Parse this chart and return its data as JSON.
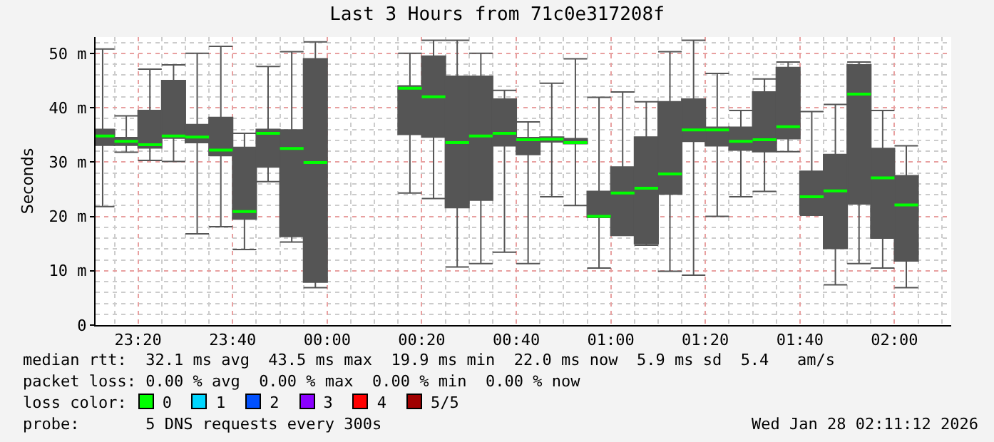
{
  "chart_data": {
    "type": "box",
    "title": "Last 3 Hours from 71c0e317208f",
    "ylabel": "Seconds",
    "x": [
      "2026-01-27T23:15",
      "2026-01-27T23:20",
      "2026-01-27T23:25",
      "2026-01-27T23:30",
      "2026-01-27T23:35",
      "2026-01-27T23:40",
      "2026-01-27T23:45",
      "2026-01-27T23:50",
      "2026-01-27T23:55",
      "2026-01-28T00:00",
      "2026-01-28T00:20",
      "2026-01-28T00:25",
      "2026-01-28T00:30",
      "2026-01-28T00:35",
      "2026-01-28T00:40",
      "2026-01-28T00:45",
      "2026-01-28T00:50",
      "2026-01-28T00:55",
      "2026-01-28T01:00",
      "2026-01-28T01:05",
      "2026-01-28T01:10",
      "2026-01-28T01:15",
      "2026-01-28T01:20",
      "2026-01-28T01:25",
      "2026-01-28T01:30",
      "2026-01-28T01:35",
      "2026-01-28T01:40",
      "2026-01-28T01:45",
      "2026-01-28T01:50",
      "2026-01-28T01:55",
      "2026-01-28T02:00",
      "2026-01-28T02:05"
    ],
    "series": [
      {
        "color": "#555555",
        "boxes": [
          {
            "low": 21.8,
            "q1": 33.1,
            "median": 34.8,
            "q3": 36.0,
            "high": 50.8
          },
          {
            "low": 31.8,
            "q1": 33.1,
            "median": 33.8,
            "q3": 34.5,
            "high": 38.5
          },
          {
            "low": 30.3,
            "q1": 32.6,
            "median": 33.2,
            "q3": 39.5,
            "high": 47.1
          },
          {
            "low": 30.1,
            "q1": 34.4,
            "median": 34.8,
            "q3": 45.0,
            "high": 47.9
          },
          {
            "low": 16.8,
            "q1": 33.6,
            "median": 34.6,
            "q3": 36.9,
            "high": 50.0
          },
          {
            "low": 18.1,
            "q1": 31.2,
            "median": 32.2,
            "q3": 38.2,
            "high": 51.3
          },
          {
            "low": 13.9,
            "q1": 19.5,
            "median": 20.9,
            "q3": 32.7,
            "high": 35.3
          },
          {
            "low": 26.4,
            "q1": 29.1,
            "median": 35.3,
            "q3": 36.0,
            "high": 47.6
          },
          {
            "low": 15.3,
            "q1": 16.3,
            "median": 32.5,
            "q3": 35.9,
            "high": 50.3
          },
          {
            "low": 6.9,
            "q1": 7.9,
            "median": 29.9,
            "q3": 49.0,
            "high": 52.1
          },
          {
            "low": 24.3,
            "q1": 35.1,
            "median": 43.6,
            "q3": 44.0,
            "high": 50.0
          },
          {
            "low": 23.3,
            "q1": 34.6,
            "median": 42.0,
            "q3": 49.5,
            "high": 52.4
          },
          {
            "low": 10.7,
            "q1": 21.6,
            "median": 33.6,
            "q3": 45.8,
            "high": 52.4
          },
          {
            "low": 11.3,
            "q1": 23.0,
            "median": 34.8,
            "q3": 45.8,
            "high": 50.0
          },
          {
            "low": 13.4,
            "q1": 33.0,
            "median": 35.3,
            "q3": 41.6,
            "high": 43.2
          },
          {
            "low": 11.3,
            "q1": 31.4,
            "median": 34.1,
            "q3": 34.5,
            "high": 37.4
          },
          {
            "low": 23.6,
            "q1": 33.7,
            "median": 34.2,
            "q3": 34.6,
            "high": 44.5
          },
          {
            "low": 22.0,
            "q1": 33.4,
            "median": 33.6,
            "q3": 34.3,
            "high": 49.0
          },
          {
            "low": 10.5,
            "q1": 19.8,
            "median": 20.0,
            "q3": 24.6,
            "high": 41.9
          },
          {
            "low": 16.5,
            "q1": 16.5,
            "median": 24.3,
            "q3": 29.1,
            "high": 42.9
          },
          {
            "low": 14.7,
            "q1": 15.0,
            "median": 25.2,
            "q3": 34.6,
            "high": 41.1
          },
          {
            "low": 9.9,
            "q1": 24.1,
            "median": 27.8,
            "q3": 41.1,
            "high": 50.3
          },
          {
            "low": 9.2,
            "q1": 33.8,
            "median": 35.9,
            "q3": 41.6,
            "high": 52.4
          },
          {
            "low": 20.0,
            "q1": 33.0,
            "median": 35.9,
            "q3": 36.4,
            "high": 46.3
          },
          {
            "low": 23.6,
            "q1": 32.2,
            "median": 33.8,
            "q3": 36.4,
            "high": 39.5
          },
          {
            "low": 24.6,
            "q1": 31.9,
            "median": 34.1,
            "q3": 42.9,
            "high": 45.3
          },
          {
            "low": 31.9,
            "q1": 34.3,
            "median": 36.5,
            "q3": 47.4,
            "high": 48.4
          },
          {
            "low": 20.2,
            "q1": 20.4,
            "median": 23.6,
            "q3": 28.3,
            "high": 39.3
          },
          {
            "low": 7.4,
            "q1": 14.1,
            "median": 24.7,
            "q3": 31.4,
            "high": 40.6
          },
          {
            "low": 11.3,
            "q1": 22.3,
            "median": 42.5,
            "q3": 47.9,
            "high": 48.4
          },
          {
            "low": 10.5,
            "q1": 16.0,
            "median": 27.1,
            "q3": 32.5,
            "high": 39.5
          },
          {
            "low": 6.9,
            "q1": 11.8,
            "median": 22.1,
            "q3": 27.5,
            "high": 33.0
          }
        ]
      }
    ],
    "xlim": [
      "2026-01-27T23:11",
      "2026-01-28T02:12"
    ],
    "xticks": [
      {
        "value": "2026-01-27T23:20",
        "label": "23:20"
      },
      {
        "value": "2026-01-27T23:40",
        "label": "23:40"
      },
      {
        "value": "2026-01-28T00:00",
        "label": "00:00"
      },
      {
        "value": "2026-01-28T00:20",
        "label": "00:20"
      },
      {
        "value": "2026-01-28T00:40",
        "label": "00:40"
      },
      {
        "value": "2026-01-28T01:00",
        "label": "01:00"
      },
      {
        "value": "2026-01-28T01:20",
        "label": "01:20"
      },
      {
        "value": "2026-01-28T01:40",
        "label": "01:40"
      },
      {
        "value": "2026-01-28T02:00",
        "label": "02:00"
      }
    ],
    "ylim": [
      0,
      53
    ],
    "yticks": [
      0,
      {
        "value": 10,
        "label": "10 m"
      },
      {
        "value": 20,
        "label": "20 m"
      },
      {
        "value": 30,
        "label": "30 m"
      },
      {
        "value": 40,
        "label": "40 m"
      },
      {
        "value": 50,
        "label": "50 m"
      }
    ],
    "grid": true,
    "annotations": [
      "median rtt:  32.1 ms avg  43.5 ms max  19.9 ms min  22.0 ms now  5.9 ms sd  5.4   am/s",
      "packet loss: 0.00 % avg  0.00 % max  0.00 % min  0.00 % now",
      "loss color:",
      "0",
      "1",
      "2",
      "3",
      "4",
      "5/5",
      "probe:       5 DNS requests every 300s",
      "Wed Jan 28 02:11:12 2026"
    ]
  }
}
